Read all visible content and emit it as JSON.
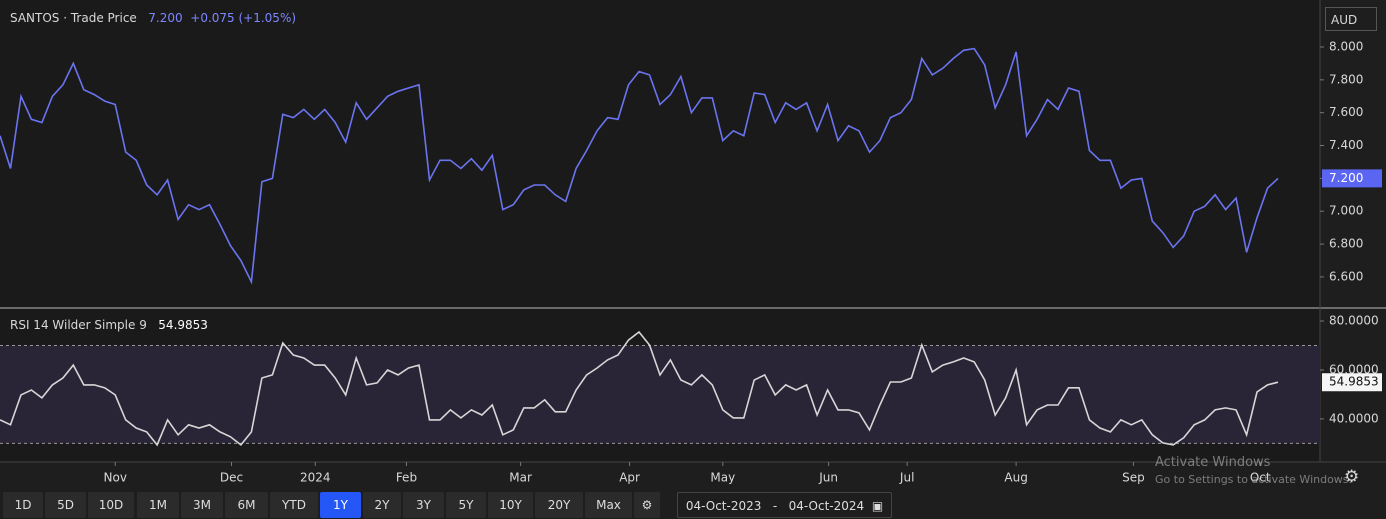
{
  "chart_data": [
    {
      "type": "line",
      "title": "SANTOS · Trade Price",
      "change": "+0.075 (+1.05%)",
      "currency": "AUD",
      "color": "#6b74f0",
      "values": [
        7.46,
        7.26,
        7.7,
        7.56,
        7.54,
        7.7,
        7.77,
        7.9,
        7.74,
        7.71,
        7.67,
        7.65,
        7.36,
        7.31,
        7.16,
        7.1,
        7.19,
        6.95,
        7.04,
        7.01,
        7.04,
        6.92,
        6.79,
        6.7,
        6.57,
        7.18,
        7.2,
        7.59,
        7.57,
        7.62,
        7.56,
        7.62,
        7.54,
        7.42,
        7.66,
        7.56,
        7.63,
        7.7,
        7.73,
        7.75,
        7.77,
        7.19,
        7.31,
        7.31,
        7.26,
        7.32,
        7.25,
        7.34,
        7.01,
        7.04,
        7.13,
        7.16,
        7.16,
        7.1,
        7.06,
        7.26,
        7.37,
        7.49,
        7.57,
        7.56,
        7.77,
        7.85,
        7.83,
        7.65,
        7.71,
        7.82,
        7.6,
        7.69,
        7.69,
        7.43,
        7.49,
        7.46,
        7.72,
        7.71,
        7.54,
        7.66,
        7.62,
        7.66,
        7.49,
        7.65,
        7.43,
        7.52,
        7.49,
        7.36,
        7.43,
        7.57,
        7.6,
        7.68,
        7.93,
        7.83,
        7.87,
        7.93,
        7.98,
        7.99,
        7.89,
        7.63,
        7.77,
        7.97,
        7.46,
        7.56,
        7.68,
        7.62,
        7.75,
        7.73,
        7.37,
        7.31,
        7.31,
        7.14,
        7.19,
        7.2,
        6.94,
        6.87,
        6.78,
        6.85,
        7.0,
        7.03,
        7.1,
        7.01,
        7.08,
        6.75,
        6.96,
        7.14,
        7.2
      ],
      "current": {
        "value": 7.2,
        "label": "7.200"
      },
      "ylim": [
        6.417,
        8.286
      ],
      "yticks": [
        {
          "value": 6.6,
          "label": "6.600"
        },
        {
          "value": 6.8,
          "label": "6.800"
        },
        {
          "value": 7.0,
          "label": "7.000"
        },
        {
          "value": 7.2,
          "label": "7.200"
        },
        {
          "value": 7.4,
          "label": "7.400"
        },
        {
          "value": 7.6,
          "label": "7.600"
        },
        {
          "value": 7.8,
          "label": "7.800"
        },
        {
          "value": 8.0,
          "label": "8.000"
        }
      ]
    },
    {
      "type": "line",
      "title": "RSI 14 Wilder Simple 9",
      "color": "#d6d6d6",
      "band_color": "#2a2437",
      "values": [
        39.6,
        37.6,
        49.8,
        51.8,
        48.6,
        53.9,
        56.7,
        62.0,
        53.9,
        53.9,
        52.7,
        49.8,
        39.6,
        36.3,
        34.7,
        29.4,
        39.6,
        33.5,
        37.6,
        36.3,
        37.6,
        34.7,
        32.7,
        29.4,
        34.7,
        56.7,
        58.0,
        71.0,
        66.1,
        64.9,
        62.0,
        62.0,
        56.7,
        49.8,
        64.9,
        53.9,
        54.7,
        60.0,
        58.0,
        60.8,
        62.0,
        39.6,
        39.6,
        43.7,
        40.4,
        43.7,
        41.6,
        45.7,
        33.5,
        35.5,
        44.5,
        44.5,
        47.8,
        42.9,
        42.9,
        51.8,
        58.0,
        60.8,
        64.1,
        66.1,
        72.2,
        75.5,
        70.2,
        58.0,
        64.1,
        55.9,
        53.9,
        58.0,
        53.9,
        43.7,
        40.4,
        40.4,
        55.9,
        58.0,
        49.8,
        53.9,
        51.8,
        53.9,
        41.6,
        51.8,
        43.7,
        43.7,
        42.5,
        35.5,
        45.7,
        55.1,
        55.1,
        56.7,
        70.2,
        59.2,
        62.0,
        63.3,
        64.9,
        63.3,
        55.9,
        41.6,
        48.6,
        60.0,
        37.6,
        43.7,
        45.7,
        45.7,
        52.7,
        52.7,
        39.6,
        36.3,
        34.7,
        39.6,
        37.6,
        39.6,
        33.5,
        30.2,
        29.4,
        32.3,
        37.6,
        39.6,
        43.7,
        44.5,
        43.7,
        33.5,
        51.0,
        53.9,
        54.9853
      ],
      "current": 54.9853,
      "levels": [
        30,
        70
      ],
      "ylim": [
        22.4,
        84.5
      ],
      "yticks": [
        {
          "value": 40,
          "label": "40.0000"
        },
        {
          "value": 60,
          "label": "60.0000"
        },
        {
          "value": 80,
          "label": "80.0000"
        }
      ],
      "xticks": [
        {
          "value": 11,
          "label": "Nov"
        },
        {
          "value": 22.1,
          "label": "Dec"
        },
        {
          "value": 30.1,
          "label": "2024"
        },
        {
          "value": 38.8,
          "label": "Feb"
        },
        {
          "value": 49.7,
          "label": "Mar"
        },
        {
          "value": 60.1,
          "label": "Apr"
        },
        {
          "value": 69,
          "label": "May"
        },
        {
          "value": 79.1,
          "label": "Jun"
        },
        {
          "value": 86.6,
          "label": "Jul"
        },
        {
          "value": 97,
          "label": "Aug"
        },
        {
          "value": 108.2,
          "label": "Sep"
        },
        {
          "value": 120.3,
          "label": "Oct"
        }
      ]
    }
  ],
  "toolbar": {
    "ranges": [
      "1D",
      "5D",
      "10D",
      "1M",
      "3M",
      "6M",
      "YTD",
      "1Y",
      "2Y",
      "3Y",
      "5Y",
      "10Y",
      "20Y",
      "Max"
    ],
    "selected": "1Y",
    "from": "04-Oct-2023",
    "separator": "-",
    "to": "04-Oct-2024"
  },
  "watermark": {
    "title": "Activate Windows",
    "text": "Go to Settings to activate Windows."
  }
}
